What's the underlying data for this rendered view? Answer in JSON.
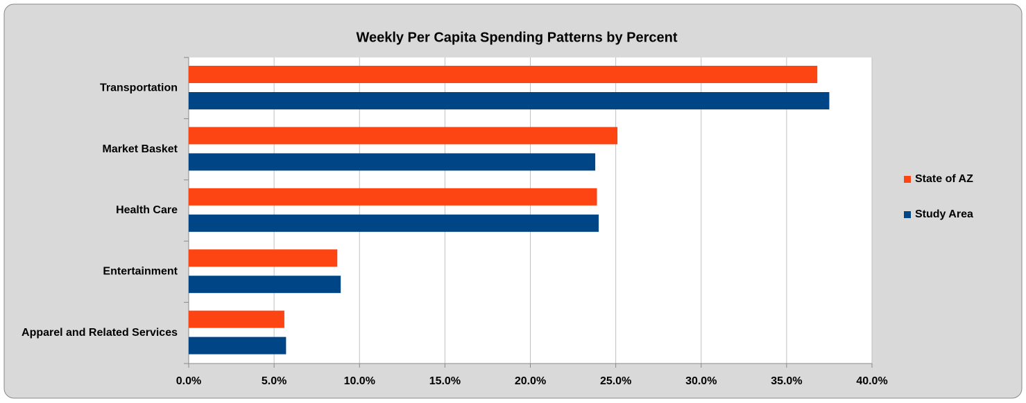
{
  "chart_data": {
    "type": "bar",
    "orientation": "horizontal",
    "title": "Weekly Per Capita Spending Patterns by Percent",
    "categories": [
      "Transportation",
      "Market Basket",
      "Health Care",
      "Entertainment",
      "Apparel and Related Services"
    ],
    "series": [
      {
        "name": "State of AZ",
        "color": "#fc4513",
        "values": [
          36.8,
          25.1,
          23.9,
          8.7,
          5.6
        ]
      },
      {
        "name": "Study Area",
        "color": "#004586",
        "values": [
          37.5,
          23.8,
          24.0,
          8.9,
          5.7
        ]
      }
    ],
    "xlim": [
      0,
      40
    ],
    "xticks": [
      {
        "value": 0,
        "label": "0.0%"
      },
      {
        "value": 5,
        "label": "5.0%"
      },
      {
        "value": 10,
        "label": "10.0%"
      },
      {
        "value": 15,
        "label": "15.0%"
      },
      {
        "value": 20,
        "label": "20.0%"
      },
      {
        "value": 25,
        "label": "25.0%"
      },
      {
        "value": 30,
        "label": "30.0%"
      },
      {
        "value": 35,
        "label": "35.0%"
      },
      {
        "value": 40,
        "label": "40.0%"
      }
    ],
    "grid": true,
    "legend": "right"
  }
}
